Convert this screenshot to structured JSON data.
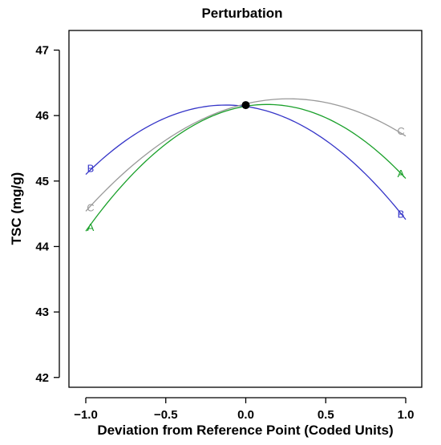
{
  "chart_data": {
    "type": "line",
    "title": "Perturbation",
    "xlabel": "Deviation from Reference Point (Coded Units)",
    "ylabel": "TSC (mg/g)",
    "xlim": [
      -1.0,
      1.0
    ],
    "ylim": [
      41.85,
      47.3
    ],
    "x_ticks": [
      -1.0,
      -0.5,
      0.0,
      0.5,
      1.0
    ],
    "x_tick_labels": [
      "−1.0",
      "−0.5",
      "0.0",
      "0.5",
      "1.0"
    ],
    "y_ticks": [
      42,
      43,
      44,
      45,
      46,
      47
    ],
    "y_tick_labels": [
      "42",
      "43",
      "44",
      "45",
      "46",
      "47"
    ],
    "grid": false,
    "reference_point": {
      "x": 0.0,
      "y": 46.16
    },
    "series": [
      {
        "name": "A",
        "color": "#1aa02a",
        "x": [
          -1.0,
          -0.5,
          0.0,
          0.5,
          1.0
        ],
        "y": [
          44.23,
          45.57,
          46.16,
          45.94,
          45.05
        ],
        "label_at": [
          {
            "x": -0.97,
            "y": 44.3
          },
          {
            "x": 0.97,
            "y": 45.12
          }
        ]
      },
      {
        "name": "B",
        "color": "#3535c8",
        "x": [
          -1.0,
          -0.5,
          0.0,
          0.5,
          1.0
        ],
        "y": [
          45.1,
          45.96,
          46.16,
          45.6,
          44.42
        ],
        "label_at": [
          {
            "x": -0.97,
            "y": 45.2
          },
          {
            "x": 0.97,
            "y": 44.5
          }
        ]
      },
      {
        "name": "C",
        "color": "#999999",
        "x": [
          -1.0,
          -0.5,
          0.0,
          0.5,
          1.0
        ],
        "y": [
          44.52,
          45.67,
          46.16,
          46.18,
          45.7
        ],
        "label_at": [
          {
            "x": -0.97,
            "y": 44.6
          },
          {
            "x": 0.97,
            "y": 45.77
          }
        ]
      }
    ]
  }
}
